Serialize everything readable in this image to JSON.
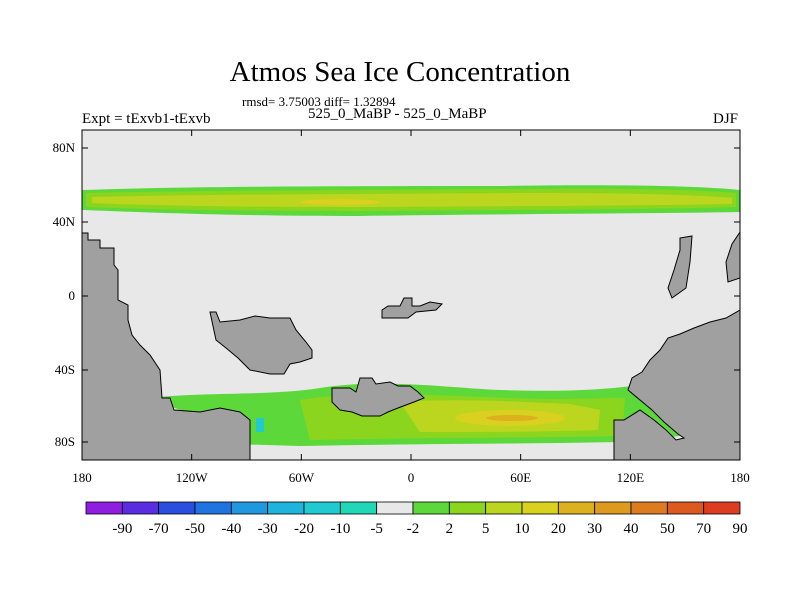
{
  "title": "Atmos Sea Ice Concentration",
  "stats_line": "rmsd= 3.75003 diff= 1.32894",
  "experiment_label": "Expt = tExvb1-tExvb",
  "subtitle": "525_0_MaBP - 525_0_MaBP",
  "season": "DJF",
  "map": {
    "y_ticks": [
      "80N",
      "40N",
      "0",
      "40S",
      "80S"
    ],
    "x_ticks": [
      "180",
      "120W",
      "60W",
      "0",
      "60E",
      "120E",
      "180"
    ]
  },
  "colorbar": {
    "labels": [
      "-90",
      "-70",
      "-50",
      "-40",
      "-30",
      "-20",
      "-10",
      "-5",
      "-2",
      "2",
      "5",
      "10",
      "20",
      "30",
      "40",
      "50",
      "70",
      "90"
    ],
    "colors": [
      "#8f1fe0",
      "#5a2ee0",
      "#2a4fe0",
      "#1f74e0",
      "#1f98e0",
      "#1fb4dc",
      "#1fcad0",
      "#20d8b8",
      "#e8e8e8",
      "#5cd83a",
      "#8cd51f",
      "#bcd61f",
      "#d9d01f",
      "#dcb01f",
      "#dc9a1f",
      "#dc7c1f",
      "#dc5a1f",
      "#dc3c1f"
    ]
  },
  "colors": {
    "background": "#e8e8e8",
    "land": "#a0a0a0",
    "ice_low": "#5cd83a",
    "ice_mid": "#8cd51f",
    "ice_high": "#bcd61f",
    "ice_peak": "#d9d01f",
    "ice_max": "#dcb01f",
    "negative": "#1fcad0"
  }
}
